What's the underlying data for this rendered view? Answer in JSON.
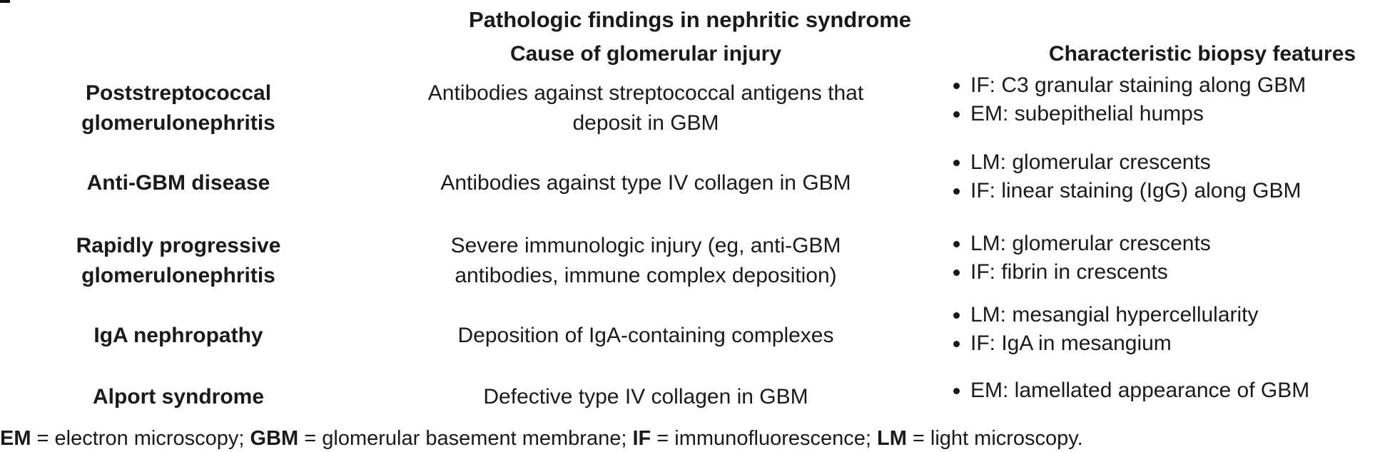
{
  "title": "Pathologic findings in nephritic syndrome",
  "columns": {
    "cause": "Cause of glomerular injury",
    "features": "Characteristic biopsy features"
  },
  "rows": [
    {
      "disease": [
        "Poststreptococcal",
        "glomerulonephritis"
      ],
      "cause": [
        "Antibodies against streptococcal antigens that",
        "deposit in GBM"
      ],
      "features": [
        "IF: C3 granular staining along GBM",
        "EM: subepithelial humps"
      ]
    },
    {
      "disease": [
        "Anti-GBM disease"
      ],
      "cause": [
        "Antibodies against type IV collagen in GBM"
      ],
      "features": [
        "LM: glomerular crescents",
        "IF: linear staining (IgG) along GBM"
      ]
    },
    {
      "disease": [
        "Rapidly progressive",
        "glomerulonephritis"
      ],
      "cause": [
        "Severe immunologic injury (eg, anti-GBM",
        "antibodies, immune complex deposition)"
      ],
      "features": [
        "LM: glomerular crescents",
        "IF: fibrin in crescents"
      ]
    },
    {
      "disease": [
        "IgA nephropathy"
      ],
      "cause": [
        "Deposition of IgA-containing complexes"
      ],
      "features": [
        "LM: mesangial hypercellularity",
        "IF: IgA in mesangium"
      ]
    },
    {
      "disease": [
        "Alport syndrome"
      ],
      "cause": [
        "Defective type IV collagen in GBM"
      ],
      "features": [
        "EM: lamellated appearance of GBM"
      ]
    }
  ],
  "footnote": [
    {
      "abbr": "EM",
      "text": " = electron microscopy; "
    },
    {
      "abbr": "GBM",
      "text": " = glomerular basement membrane; "
    },
    {
      "abbr": "IF",
      "text": " = immunofluorescence; "
    },
    {
      "abbr": "LM",
      "text": " = light microscopy."
    }
  ]
}
